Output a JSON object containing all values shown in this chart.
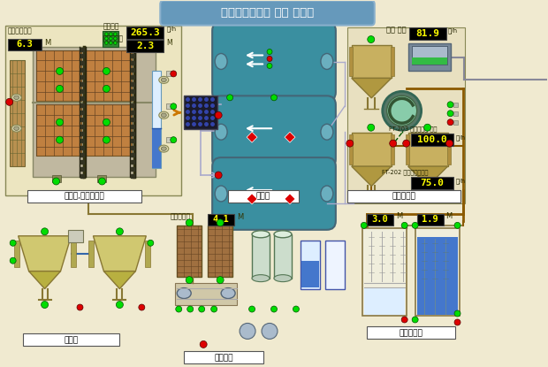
{
  "title": "영암하수처리장 전체 공정도",
  "bg_color": "#f0ead0",
  "title_bg": "#6699bb",
  "display_values": {
    "유입면홍수위": "6.3",
    "유입유량": "265.3",
    "유입청수위": "2.3",
    "방류유량": "81.9",
    "FT203": "100.0",
    "FT202": "75.0",
    "저류조수위": "4.1",
    "level1": "3.0",
    "level2": "1.9"
  },
  "labels": {
    "section1": "침사지,유입펌프장",
    "section2": "산화구",
    "section3": "최종침전지",
    "section4": "농축조",
    "section5": "탈수설비",
    "section6": "사이과설비"
  },
  "colors": {
    "tank_teal": "#3a8fa0",
    "tank_brown_dark": "#8b6030",
    "tank_sand": "#c8b060",
    "tank_sand2": "#b09840",
    "green_dot": "#00dd00",
    "red_dot": "#dd0000",
    "black_bg": "#000000",
    "yellow_text": "#ffff00",
    "blue_water": "#4477cc",
    "blue_light": "#aaccee",
    "line_brown": "#8b5a00",
    "line_blue": "#3366aa",
    "line_gray": "#888899",
    "grating_brown": "#b07830",
    "pump_green": "#33aa88"
  }
}
